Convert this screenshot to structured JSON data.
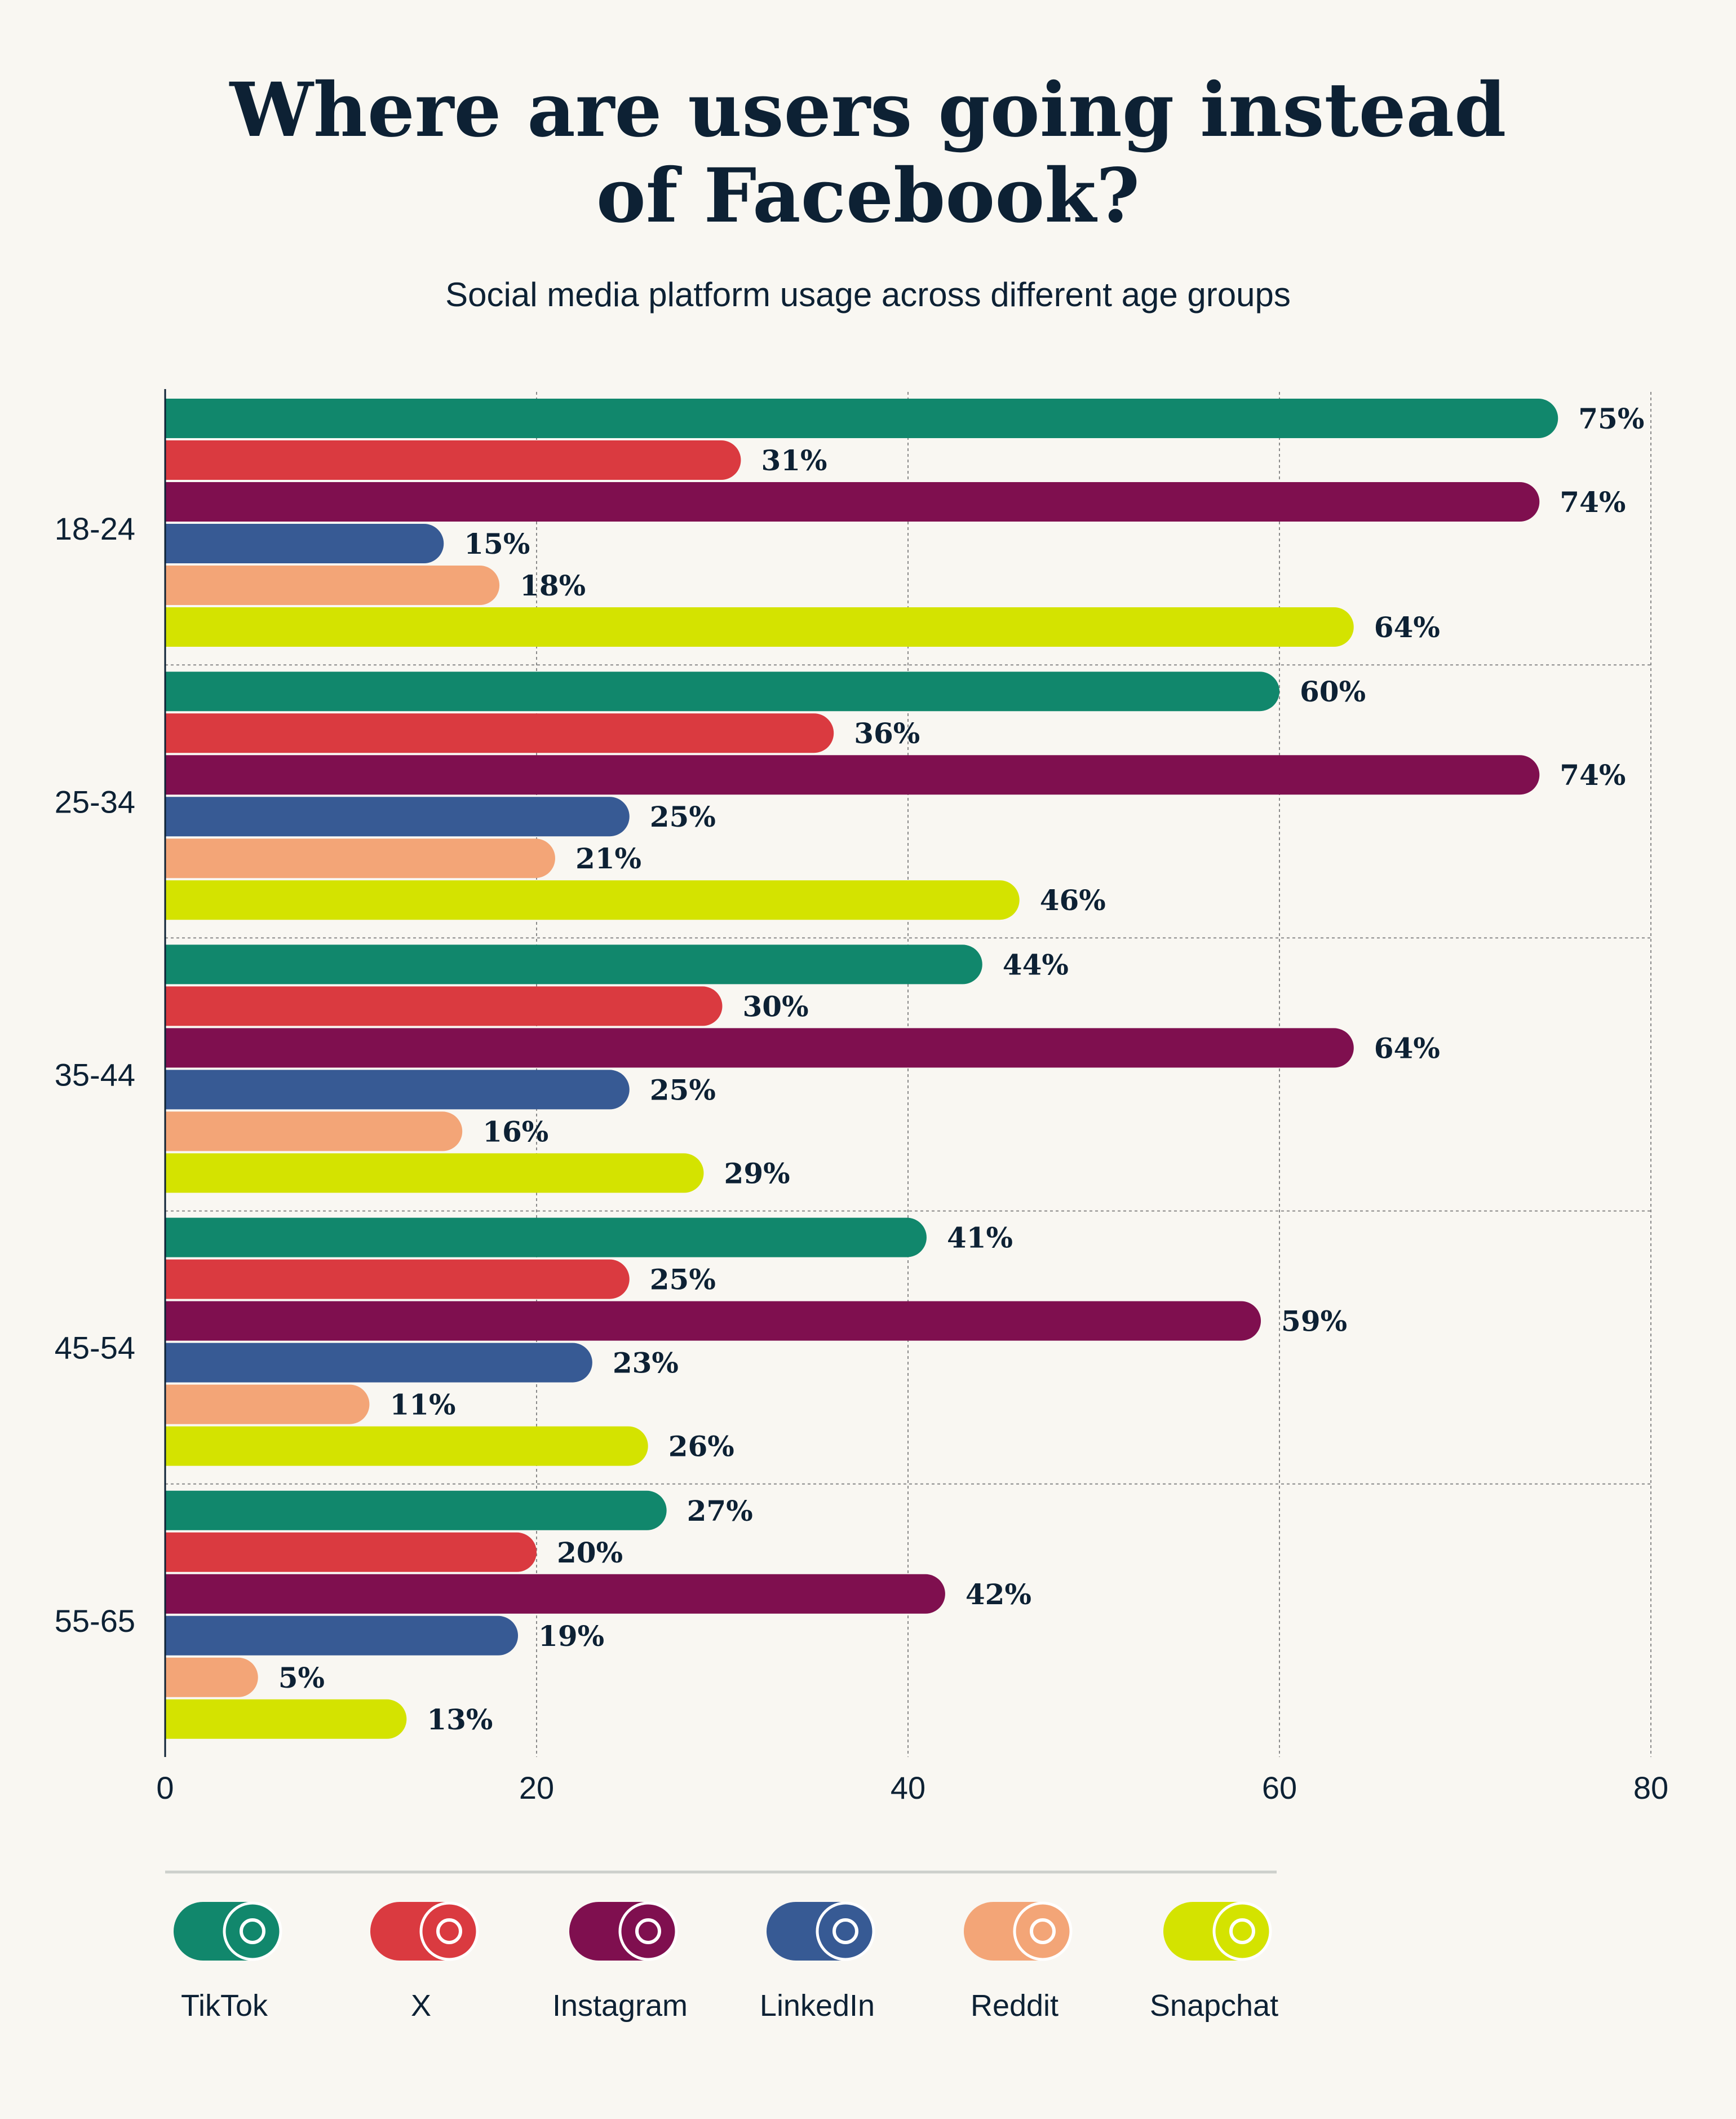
{
  "title_line1": "Where are users going instead",
  "title_line2": "of Facebook?",
  "subtitle": "Social media platform usage across different age groups",
  "chart_data": {
    "type": "bar",
    "orientation": "horizontal",
    "title": "Where are users going instead of Facebook?",
    "subtitle": "Social media platform usage across different age groups",
    "categories": [
      "18-24",
      "25-34",
      "35-44",
      "45-54",
      "55-65"
    ],
    "xlim": [
      0,
      80
    ],
    "xticks": [
      0,
      20,
      40,
      60,
      80
    ],
    "grid": true,
    "legend_position": "bottom",
    "value_suffix": "%",
    "series": [
      {
        "name": "TikTok",
        "color": "#11876c",
        "icon": "tiktok-icon",
        "values": [
          75,
          60,
          44,
          41,
          27
        ]
      },
      {
        "name": "X",
        "color": "#da3a40",
        "icon": "x-logo-icon",
        "values": [
          31,
          36,
          30,
          25,
          20
        ]
      },
      {
        "name": "Instagram",
        "color": "#7f0f4f",
        "icon": "instagram-icon",
        "values": [
          74,
          74,
          64,
          59,
          42
        ]
      },
      {
        "name": "LinkedIn",
        "color": "#375a94",
        "icon": "linkedin-icon",
        "values": [
          15,
          25,
          25,
          23,
          19
        ]
      },
      {
        "name": "Reddit",
        "color": "#f3a577",
        "icon": "reddit-icon",
        "values": [
          18,
          21,
          16,
          11,
          5
        ]
      },
      {
        "name": "Snapchat",
        "color": "#d4e300",
        "icon": "snapchat-icon",
        "values": [
          64,
          46,
          29,
          26,
          13
        ]
      }
    ]
  }
}
